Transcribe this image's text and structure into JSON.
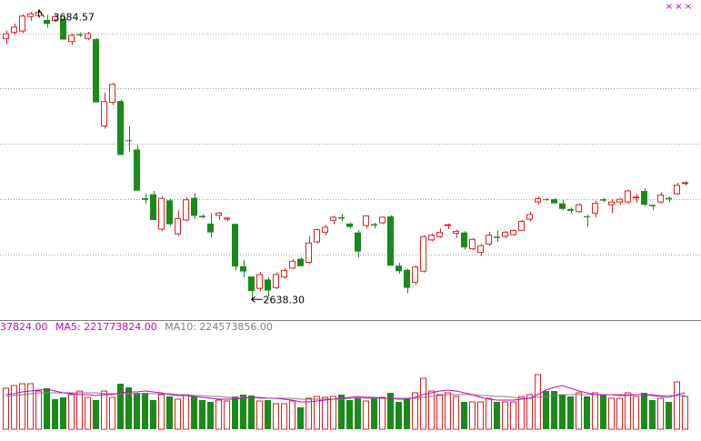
{
  "chart_data": [
    {
      "type": "candlestick",
      "price_range": [
        2570,
        3720
      ],
      "gridlines": [
        3600,
        3400,
        3200,
        3000,
        2800
      ],
      "annotations": {
        "high_label": "3684.57",
        "low_label": "2638.30"
      },
      "candles": [
        {
          "o": 3580,
          "h": 3610,
          "l": 3560,
          "c": 3598,
          "up": true
        },
        {
          "o": 3603,
          "h": 3635,
          "l": 3595,
          "c": 3622,
          "up": true
        },
        {
          "o": 3608,
          "h": 3668,
          "l": 3600,
          "c": 3662,
          "up": true
        },
        {
          "o": 3660,
          "h": 3676,
          "l": 3645,
          "c": 3670,
          "up": true
        },
        {
          "o": 3664,
          "h": 3685,
          "l": 3655,
          "c": 3676,
          "up": true
        },
        {
          "o": 3648,
          "h": 3666,
          "l": 3620,
          "c": 3634,
          "up": false
        },
        {
          "o": 3645,
          "h": 3668,
          "l": 3640,
          "c": 3660,
          "up": true
        },
        {
          "o": 3652,
          "h": 3666,
          "l": 3578,
          "c": 3577,
          "up": false
        },
        {
          "o": 3570,
          "h": 3598,
          "l": 3558,
          "c": 3592,
          "up": true
        },
        {
          "o": 3596,
          "h": 3603,
          "l": 3586,
          "c": 3592,
          "up": false
        },
        {
          "o": 3581,
          "h": 3605,
          "l": 3575,
          "c": 3598,
          "up": true
        },
        {
          "o": 3579,
          "h": 3582,
          "l": 3350,
          "c": 3350,
          "up": false
        },
        {
          "o": 3265,
          "h": 3385,
          "l": 3255,
          "c": 3353,
          "up": true
        },
        {
          "o": 3350,
          "h": 3420,
          "l": 3340,
          "c": 3415,
          "up": true
        },
        {
          "o": 3355,
          "h": 3360,
          "l": 3160,
          "c": 3160,
          "up": false
        },
        {
          "o": 3210,
          "h": 3265,
          "l": 3170,
          "c": 3213,
          "up": false
        },
        {
          "o": 3180,
          "h": 3195,
          "l": 3030,
          "c": 3031,
          "up": false
        },
        {
          "o": 3004,
          "h": 3018,
          "l": 2985,
          "c": 2998,
          "up": false
        },
        {
          "o": 3018,
          "h": 3030,
          "l": 2925,
          "c": 2925,
          "up": false
        },
        {
          "o": 2892,
          "h": 3010,
          "l": 2885,
          "c": 3003,
          "up": true
        },
        {
          "o": 2996,
          "h": 3002,
          "l": 2905,
          "c": 2910,
          "up": false
        },
        {
          "o": 2875,
          "h": 2960,
          "l": 2868,
          "c": 2930,
          "up": true
        },
        {
          "o": 2925,
          "h": 3008,
          "l": 2920,
          "c": 2998,
          "up": true
        },
        {
          "o": 3005,
          "h": 3022,
          "l": 2930,
          "c": 2940,
          "up": false
        },
        {
          "o": 2935,
          "h": 2945,
          "l": 2930,
          "c": 2940,
          "up": false
        },
        {
          "o": 2912,
          "h": 2950,
          "l": 2862,
          "c": 2880,
          "up": false
        },
        {
          "o": 2942,
          "h": 2955,
          "l": 2925,
          "c": 2950,
          "up": true
        },
        {
          "o": 2928,
          "h": 2935,
          "l": 2920,
          "c": 2932,
          "up": true
        },
        {
          "o": 2911,
          "h": 2911,
          "l": 2743,
          "c": 2757,
          "up": false
        },
        {
          "o": 2758,
          "h": 2780,
          "l": 2718,
          "c": 2739,
          "up": false
        },
        {
          "o": 2721,
          "h": 2722,
          "l": 2638,
          "c": 2668,
          "up": false
        },
        {
          "o": 2678,
          "h": 2738,
          "l": 2669,
          "c": 2728,
          "up": true
        },
        {
          "o": 2710,
          "h": 2719,
          "l": 2649,
          "c": 2670,
          "up": false
        },
        {
          "o": 2681,
          "h": 2735,
          "l": 2675,
          "c": 2728,
          "up": true
        },
        {
          "o": 2719,
          "h": 2752,
          "l": 2713,
          "c": 2743,
          "up": true
        },
        {
          "o": 2751,
          "h": 2784,
          "l": 2747,
          "c": 2776,
          "up": true
        },
        {
          "o": 2785,
          "h": 2790,
          "l": 2758,
          "c": 2758,
          "up": false
        },
        {
          "o": 2772,
          "h": 2866,
          "l": 2765,
          "c": 2842,
          "up": true
        },
        {
          "o": 2846,
          "h": 2894,
          "l": 2840,
          "c": 2890,
          "up": true
        },
        {
          "o": 2881,
          "h": 2907,
          "l": 2870,
          "c": 2899,
          "up": true
        },
        {
          "o": 2924,
          "h": 2940,
          "l": 2910,
          "c": 2935,
          "up": true
        },
        {
          "o": 2935,
          "h": 2948,
          "l": 2920,
          "c": 2930,
          "up": false
        },
        {
          "o": 2900,
          "h": 2915,
          "l": 2895,
          "c": 2912,
          "up": false
        },
        {
          "o": 2880,
          "h": 2890,
          "l": 2790,
          "c": 2811,
          "up": false
        },
        {
          "o": 2905,
          "h": 2940,
          "l": 2895,
          "c": 2940,
          "up": true
        },
        {
          "o": 2905,
          "h": 2915,
          "l": 2895,
          "c": 2910,
          "up": false
        },
        {
          "o": 2915,
          "h": 2938,
          "l": 2910,
          "c": 2935,
          "up": true
        },
        {
          "o": 2938,
          "h": 2942,
          "l": 2760,
          "c": 2760,
          "up": false
        },
        {
          "o": 2760,
          "h": 2770,
          "l": 2730,
          "c": 2740,
          "up": false
        },
        {
          "o": 2745,
          "h": 2750,
          "l": 2660,
          "c": 2680,
          "up": false
        },
        {
          "o": 2700,
          "h": 2760,
          "l": 2690,
          "c": 2755,
          "up": true
        },
        {
          "o": 2740,
          "h": 2870,
          "l": 2735,
          "c": 2865,
          "up": true
        },
        {
          "o": 2853,
          "h": 2877,
          "l": 2848,
          "c": 2870,
          "up": true
        },
        {
          "o": 2865,
          "h": 2895,
          "l": 2860,
          "c": 2880,
          "up": true
        },
        {
          "o": 2905,
          "h": 2912,
          "l": 2892,
          "c": 2908,
          "up": true
        },
        {
          "o": 2877,
          "h": 2890,
          "l": 2860,
          "c": 2884,
          "up": true
        },
        {
          "o": 2880,
          "h": 2885,
          "l": 2818,
          "c": 2826,
          "up": false
        },
        {
          "o": 2821,
          "h": 2860,
          "l": 2815,
          "c": 2855,
          "up": true
        },
        {
          "o": 2808,
          "h": 2838,
          "l": 2795,
          "c": 2832,
          "up": true
        },
        {
          "o": 2838,
          "h": 2882,
          "l": 2832,
          "c": 2870,
          "up": true
        },
        {
          "o": 2865,
          "h": 2887,
          "l": 2845,
          "c": 2860,
          "up": false
        },
        {
          "o": 2866,
          "h": 2886,
          "l": 2860,
          "c": 2881,
          "up": true
        },
        {
          "o": 2872,
          "h": 2890,
          "l": 2868,
          "c": 2887,
          "up": true
        },
        {
          "o": 2888,
          "h": 2925,
          "l": 2885,
          "c": 2920,
          "up": true
        },
        {
          "o": 2928,
          "h": 2955,
          "l": 2920,
          "c": 2945,
          "up": true
        },
        {
          "o": 2990,
          "h": 3010,
          "l": 2980,
          "c": 3002,
          "up": true
        },
        {
          "o": 3000,
          "h": 3005,
          "l": 2995,
          "c": 3000,
          "up": false
        },
        {
          "o": 3000,
          "h": 3005,
          "l": 2995,
          "c": 2985,
          "up": false
        },
        {
          "o": 2985,
          "h": 2998,
          "l": 2960,
          "c": 2965,
          "up": false
        },
        {
          "o": 2965,
          "h": 2970,
          "l": 2950,
          "c": 2958,
          "up": false
        },
        {
          "o": 2955,
          "h": 2985,
          "l": 2950,
          "c": 2980,
          "up": true
        },
        {
          "o": 2938,
          "h": 2945,
          "l": 2900,
          "c": 2938,
          "up": false
        },
        {
          "o": 2950,
          "h": 2995,
          "l": 2935,
          "c": 2985,
          "up": true
        },
        {
          "o": 2995,
          "h": 3005,
          "l": 2990,
          "c": 3000,
          "up": false
        },
        {
          "o": 2980,
          "h": 3000,
          "l": 2950,
          "c": 2990,
          "up": true
        },
        {
          "o": 2990,
          "h": 3005,
          "l": 2980,
          "c": 3000,
          "up": true
        },
        {
          "o": 2990,
          "h": 3035,
          "l": 2985,
          "c": 3030,
          "up": true
        },
        {
          "o": 3008,
          "h": 3018,
          "l": 2988,
          "c": 3005,
          "up": true
        },
        {
          "o": 3030,
          "h": 3040,
          "l": 2975,
          "c": 2980,
          "up": false
        },
        {
          "o": 2980,
          "h": 2980,
          "l": 2960,
          "c": 2975,
          "up": false
        },
        {
          "o": 2990,
          "h": 3025,
          "l": 2985,
          "c": 3015,
          "up": true
        },
        {
          "o": 3005,
          "h": 3010,
          "l": 2990,
          "c": 3000,
          "up": false
        },
        {
          "o": 3020,
          "h": 3060,
          "l": 3015,
          "c": 3050,
          "up": true
        },
        {
          "o": 3060,
          "h": 3065,
          "l": 3050,
          "c": 3057,
          "up": true
        }
      ]
    },
    {
      "type": "bar",
      "legend": {
        "volume_text": "37824.00",
        "ma5_text": "MA5: 221773824.00",
        "ma10_text": "MA10: 224573856.00"
      },
      "volume_scale": [
        0,
        100
      ],
      "volume": [
        {
          "v": 45,
          "up": true
        },
        {
          "v": 48,
          "up": true
        },
        {
          "v": 50,
          "up": true
        },
        {
          "v": 50,
          "up": true
        },
        {
          "v": 42,
          "up": true
        },
        {
          "v": 45,
          "up": false
        },
        {
          "v": 33,
          "up": false
        },
        {
          "v": 35,
          "up": false
        },
        {
          "v": 38,
          "up": true
        },
        {
          "v": 42,
          "up": true
        },
        {
          "v": 35,
          "up": true
        },
        {
          "v": 32,
          "up": false
        },
        {
          "v": 42,
          "up": true
        },
        {
          "v": 35,
          "up": true
        },
        {
          "v": 50,
          "up": false
        },
        {
          "v": 46,
          "up": false
        },
        {
          "v": 40,
          "up": false
        },
        {
          "v": 40,
          "up": false
        },
        {
          "v": 32,
          "up": false
        },
        {
          "v": 38,
          "up": true
        },
        {
          "v": 36,
          "up": false
        },
        {
          "v": 33,
          "up": true
        },
        {
          "v": 38,
          "up": true
        },
        {
          "v": 36,
          "up": false
        },
        {
          "v": 32,
          "up": false
        },
        {
          "v": 30,
          "up": false
        },
        {
          "v": 32,
          "up": true
        },
        {
          "v": 31,
          "up": true
        },
        {
          "v": 36,
          "up": false
        },
        {
          "v": 38,
          "up": false
        },
        {
          "v": 37,
          "up": false
        },
        {
          "v": 31,
          "up": true
        },
        {
          "v": 32,
          "up": false
        },
        {
          "v": 28,
          "up": true
        },
        {
          "v": 28,
          "up": true
        },
        {
          "v": 31,
          "up": true
        },
        {
          "v": 24,
          "up": false
        },
        {
          "v": 34,
          "up": true
        },
        {
          "v": 36,
          "up": true
        },
        {
          "v": 35,
          "up": true
        },
        {
          "v": 36,
          "up": true
        },
        {
          "v": 38,
          "up": false
        },
        {
          "v": 32,
          "up": false
        },
        {
          "v": 35,
          "up": false
        },
        {
          "v": 31,
          "up": true
        },
        {
          "v": 34,
          "up": false
        },
        {
          "v": 35,
          "up": true
        },
        {
          "v": 40,
          "up": false
        },
        {
          "v": 30,
          "up": false
        },
        {
          "v": 34,
          "up": false
        },
        {
          "v": 40,
          "up": true
        },
        {
          "v": 56,
          "up": true
        },
        {
          "v": 42,
          "up": true
        },
        {
          "v": 38,
          "up": true
        },
        {
          "v": 40,
          "up": true
        },
        {
          "v": 36,
          "up": true
        },
        {
          "v": 30,
          "up": false
        },
        {
          "v": 30,
          "up": true
        },
        {
          "v": 30,
          "up": true
        },
        {
          "v": 34,
          "up": true
        },
        {
          "v": 30,
          "up": false
        },
        {
          "v": 30,
          "up": true
        },
        {
          "v": 30,
          "up": true
        },
        {
          "v": 36,
          "up": true
        },
        {
          "v": 38,
          "up": true
        },
        {
          "v": 60,
          "up": true
        },
        {
          "v": 42,
          "up": false
        },
        {
          "v": 42,
          "up": false
        },
        {
          "v": 38,
          "up": false
        },
        {
          "v": 36,
          "up": false
        },
        {
          "v": 40,
          "up": true
        },
        {
          "v": 36,
          "up": false
        },
        {
          "v": 40,
          "up": true
        },
        {
          "v": 38,
          "up": false
        },
        {
          "v": 34,
          "up": true
        },
        {
          "v": 34,
          "up": true
        },
        {
          "v": 40,
          "up": true
        },
        {
          "v": 36,
          "up": true
        },
        {
          "v": 40,
          "up": false
        },
        {
          "v": 32,
          "up": false
        },
        {
          "v": 34,
          "up": true
        },
        {
          "v": 30,
          "up": false
        },
        {
          "v": 52,
          "up": true
        },
        {
          "v": 36,
          "up": true
        }
      ],
      "ma5": [
        38,
        39,
        41,
        42,
        43,
        44,
        42,
        40,
        39,
        38,
        38,
        37,
        38,
        38,
        40,
        41,
        41,
        42,
        41,
        40,
        38,
        37,
        37,
        36,
        35,
        34,
        33,
        33,
        33,
        34,
        35,
        35,
        34,
        34,
        33,
        32,
        30,
        30,
        31,
        32,
        33,
        34,
        35,
        36,
        35,
        35,
        34,
        34,
        33,
        33,
        35,
        38,
        40,
        42,
        43,
        42,
        40,
        38,
        35,
        33,
        32,
        32,
        32,
        33,
        34,
        38,
        43,
        46,
        48,
        45,
        42,
        40,
        38,
        38,
        38,
        37,
        37,
        38,
        38,
        37,
        36,
        35,
        38,
        40
      ],
      "ma10": [
        36,
        37,
        38,
        39,
        40,
        40,
        40,
        40,
        40,
        40,
        40,
        40,
        39,
        39,
        39,
        39,
        39,
        39,
        39,
        39,
        39,
        38,
        38,
        37,
        37,
        36,
        36,
        35,
        35,
        35,
        35,
        34,
        34,
        34,
        34,
        34,
        33,
        33,
        33,
        33,
        33,
        33,
        34,
        34,
        34,
        34,
        34,
        34,
        34,
        34,
        34,
        35,
        36,
        37,
        38,
        38,
        38,
        38,
        37,
        37,
        36,
        36,
        35,
        34,
        34,
        35,
        36,
        37,
        38,
        38,
        38,
        38,
        38,
        38,
        38,
        38,
        38,
        38,
        38,
        38,
        37,
        37,
        37,
        37
      ],
      "colors": {
        "up": "#e02020",
        "down": "#1a8a1a",
        "ma5": "#cc00cc",
        "ma10": "#808080",
        "grid": "#a0a0a0"
      }
    }
  ],
  "corner_marks": "×××"
}
